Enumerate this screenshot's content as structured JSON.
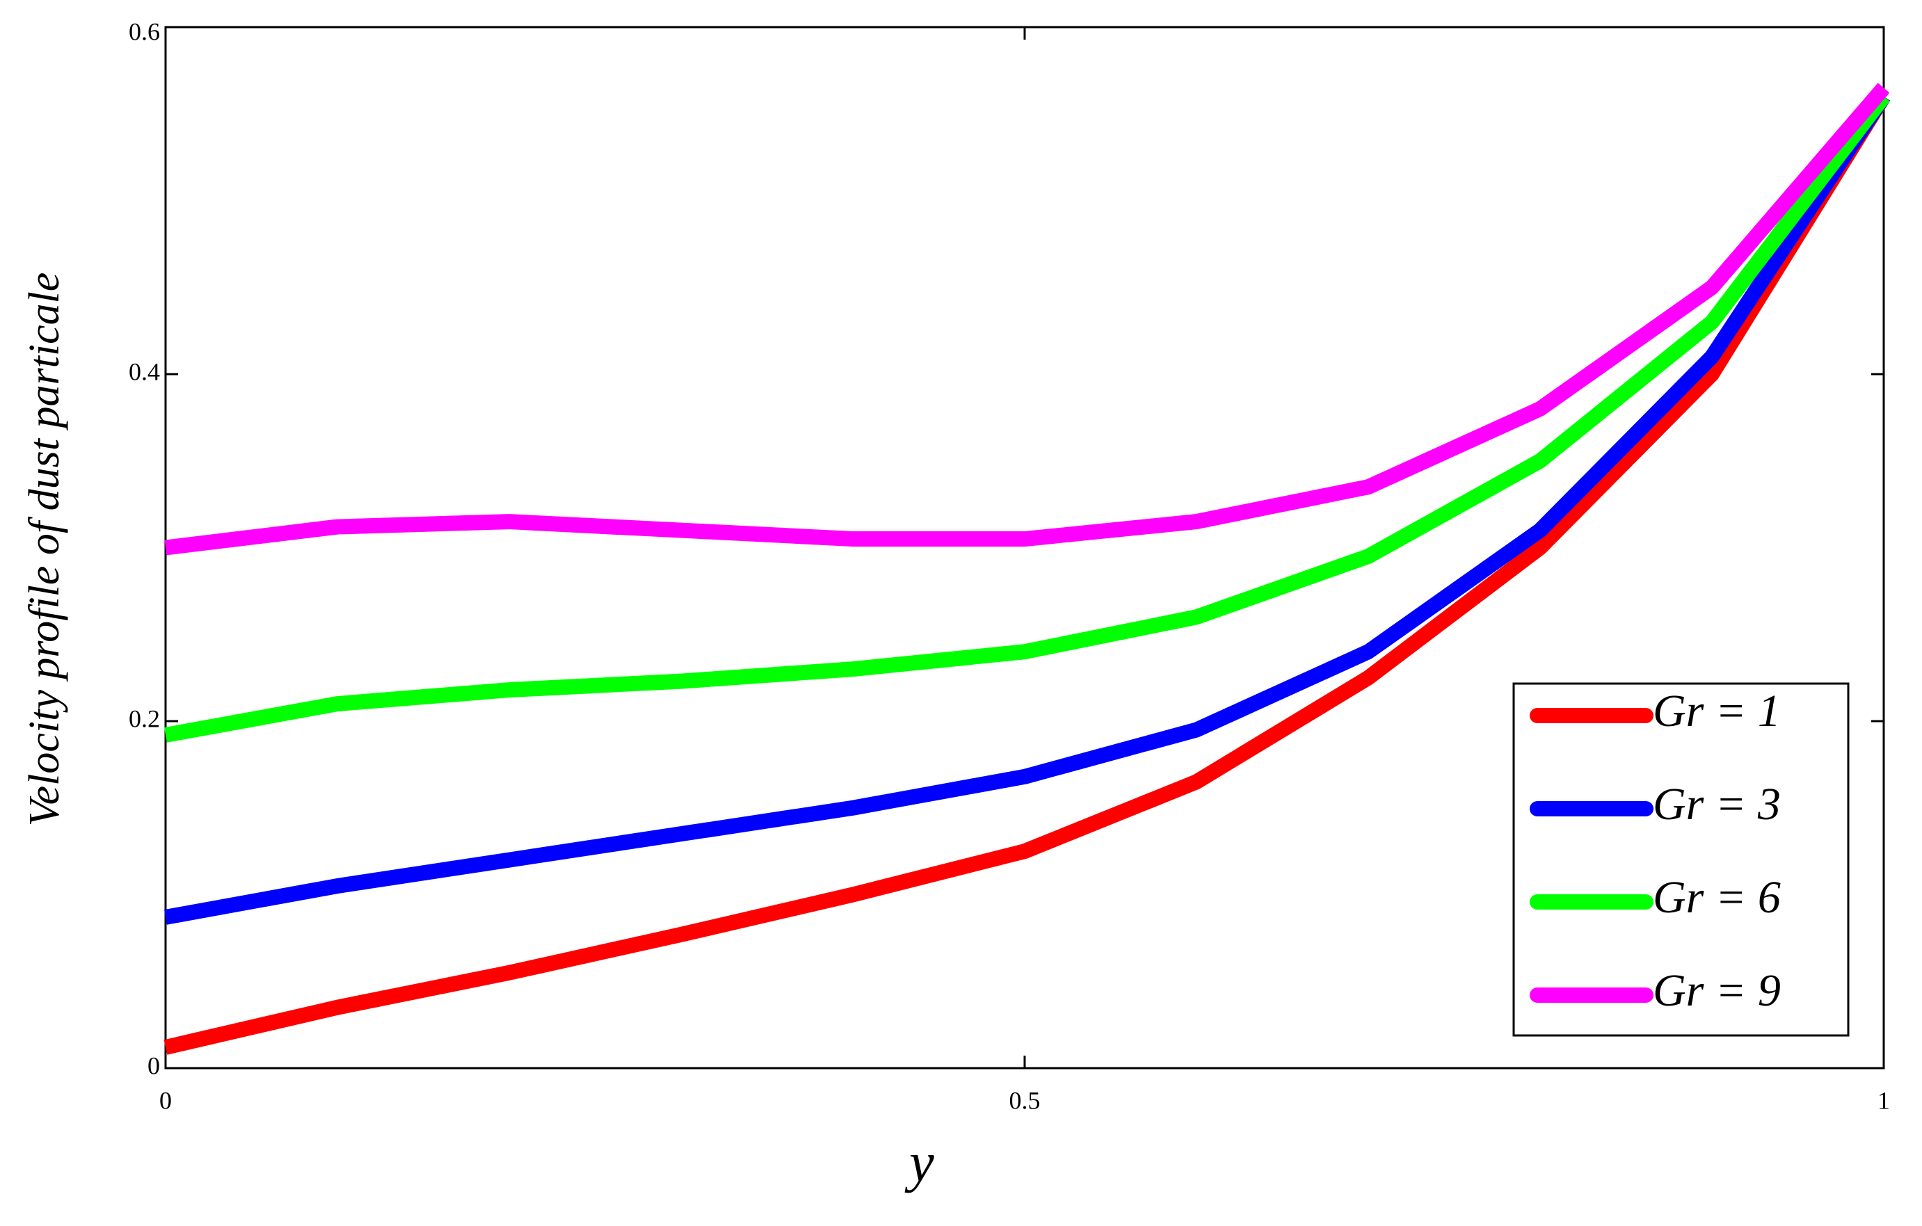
{
  "chart_data": {
    "type": "line",
    "x_label": "y",
    "y_label": "Velocity profile of  dust  particale",
    "x": [
      0,
      0.1,
      0.2,
      0.3,
      0.4,
      0.5,
      0.6,
      0.7,
      0.8,
      0.9,
      1
    ],
    "series": [
      {
        "name": "Gr = 1",
        "color": "#ff0000",
        "values": [
          0.012,
          0.035,
          0.055,
          0.077,
          0.1,
          0.125,
          0.165,
          0.225,
          0.3,
          0.4,
          0.56
        ]
      },
      {
        "name": "Gr = 3",
        "color": "#0000ff",
        "values": [
          0.087,
          0.105,
          0.12,
          0.135,
          0.15,
          0.168,
          0.195,
          0.24,
          0.31,
          0.41,
          0.56
        ]
      },
      {
        "name": "Gr = 6",
        "color": "#00ff00",
        "values": [
          0.192,
          0.21,
          0.218,
          0.223,
          0.23,
          0.24,
          0.26,
          0.295,
          0.35,
          0.43,
          0.56
        ]
      },
      {
        "name": "Gr = 9",
        "color": "#ff00ff",
        "values": [
          0.3,
          0.312,
          0.315,
          0.31,
          0.305,
          0.305,
          0.315,
          0.335,
          0.38,
          0.45,
          0.565
        ]
      }
    ],
    "xlim": [
      0,
      1
    ],
    "xticks": [
      0,
      0.5,
      1
    ],
    "ylim": [
      0,
      0.6
    ],
    "yticks": [
      0,
      0.2,
      0.4,
      0.6
    ],
    "grid": false,
    "legend": "lower right"
  }
}
